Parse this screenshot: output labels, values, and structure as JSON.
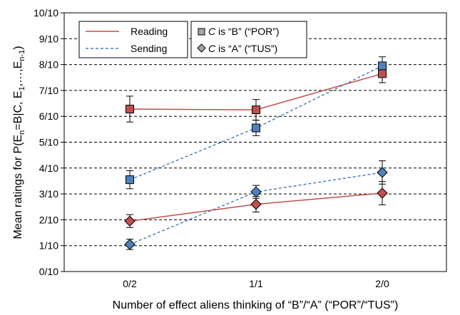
{
  "chart_data": {
    "type": "line",
    "title": "",
    "xlabel": "Number of effect aliens thinking of “B”/“A” (“POR”/“TUS”)",
    "ylabel": {
      "prefix": "Mean ratings for P(E",
      "parts": [
        {
          "t": "n",
          "sub": true
        },
        {
          "t": "=B|C, E",
          "sub": false
        },
        {
          "t": "1",
          "sub": true
        },
        {
          "t": ",…,E",
          "sub": false
        },
        {
          "t": "n-1",
          "sub": true
        },
        {
          "t": ")",
          "sub": false
        }
      ]
    },
    "categories": [
      "0/2",
      "1/1",
      "2/0"
    ],
    "ylim": [
      0,
      10
    ],
    "yticks": [
      "0/10",
      "1/10",
      "2/10",
      "3/10",
      "4/10",
      "5/10",
      "6/10",
      "7/10",
      "8/10",
      "9/10",
      "10/10"
    ],
    "grid": true,
    "colors": {
      "reading": "#c0504d",
      "sending": "#4f81bd",
      "gridline": "#000000"
    },
    "legend": {
      "placement": "top-left",
      "conditions": [
        {
          "label": "Reading",
          "style": "solid",
          "color": "#c0504d"
        },
        {
          "label": "Sending",
          "style": "dashed",
          "color": "#4f81bd"
        }
      ],
      "markers": [
        {
          "prefix": "C",
          "label": " is “B” (“POR”)",
          "marker": "square"
        },
        {
          "prefix": "C",
          "label": " is “A” (“TUS”)",
          "marker": "diamond"
        }
      ]
    },
    "series": [
      {
        "condition": "Reading",
        "marker": "square",
        "color": "#c0504d",
        "dash": false,
        "values": [
          6.28,
          6.25,
          7.65
        ],
        "errors": [
          0.5,
          0.4,
          0.35
        ]
      },
      {
        "condition": "Sending",
        "marker": "square",
        "color": "#4f81bd",
        "dash": true,
        "values": [
          3.55,
          5.55,
          7.95
        ],
        "errors": [
          0.35,
          0.3,
          0.35
        ]
      },
      {
        "condition": "Reading",
        "marker": "diamond",
        "color": "#c0504d",
        "dash": false,
        "values": [
          1.95,
          2.6,
          3.03
        ],
        "errors": [
          0.25,
          0.3,
          0.45
        ]
      },
      {
        "condition": "Sending",
        "marker": "diamond",
        "color": "#4f81bd",
        "dash": true,
        "values": [
          1.05,
          3.08,
          3.83
        ],
        "errors": [
          0.2,
          0.25,
          0.45
        ]
      }
    ]
  }
}
